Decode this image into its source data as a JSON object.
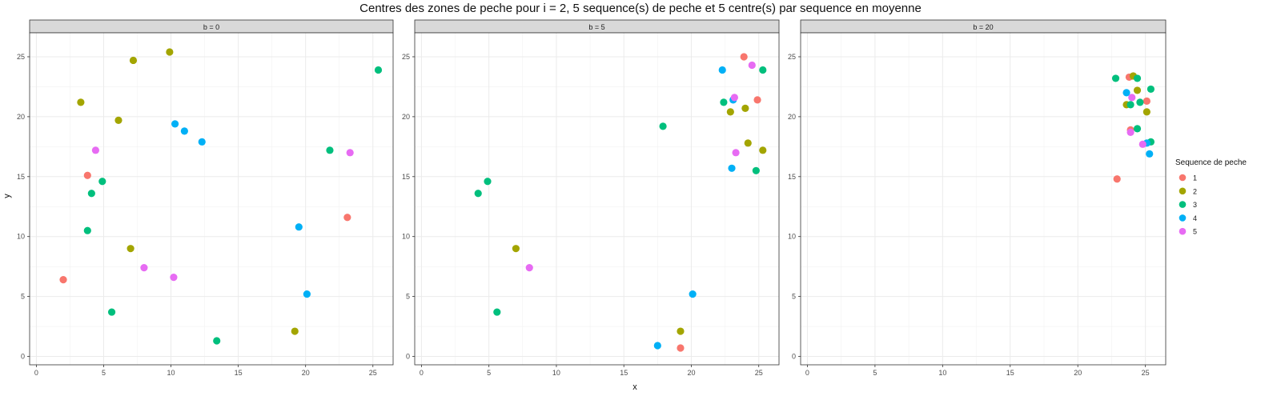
{
  "chart_data": {
    "type": "scatter",
    "title": "Centres des zones de peche pour i = 2, 5 sequence(s) de peche et 5 centre(s) par sequence en moyenne",
    "xlabel": "x",
    "ylabel": "y",
    "xlim": [
      -0.5,
      26.5
    ],
    "ylim": [
      -0.7,
      27.0
    ],
    "xticks": [
      0,
      5,
      10,
      15,
      20,
      25
    ],
    "yticks": [
      0,
      5,
      10,
      15,
      20,
      25
    ],
    "grid": true,
    "legend": {
      "title": "Sequence de peche",
      "position": "right",
      "entries": [
        {
          "label": "1",
          "color": "#F8766D"
        },
        {
          "label": "2",
          "color": "#A3A500"
        },
        {
          "label": "3",
          "color": "#00BF7D"
        },
        {
          "label": "4",
          "color": "#00B0F6"
        },
        {
          "label": "5",
          "color": "#E76BF3"
        }
      ]
    },
    "panels": [
      {
        "label": "b = 0",
        "series": [
          {
            "name": "1",
            "points": [
              [
                2.0,
                6.4
              ],
              [
                3.8,
                15.1
              ],
              [
                23.1,
                11.6
              ]
            ]
          },
          {
            "name": "2",
            "points": [
              [
                3.3,
                21.2
              ],
              [
                6.1,
                19.7
              ],
              [
                7.2,
                24.7
              ],
              [
                9.9,
                25.4
              ],
              [
                7.0,
                9.0
              ],
              [
                19.2,
                2.1
              ]
            ]
          },
          {
            "name": "3",
            "points": [
              [
                4.1,
                13.6
              ],
              [
                4.9,
                14.6
              ],
              [
                3.8,
                10.5
              ],
              [
                5.6,
                3.7
              ],
              [
                13.4,
                1.3
              ],
              [
                21.8,
                17.2
              ],
              [
                25.4,
                23.9
              ]
            ]
          },
          {
            "name": "4",
            "points": [
              [
                10.3,
                19.4
              ],
              [
                11.0,
                18.8
              ],
              [
                12.3,
                17.9
              ],
              [
                19.5,
                10.8
              ],
              [
                20.1,
                5.2
              ]
            ]
          },
          {
            "name": "5",
            "points": [
              [
                4.4,
                17.2
              ],
              [
                8.0,
                7.4
              ],
              [
                10.2,
                6.6
              ],
              [
                23.3,
                17.0
              ]
            ]
          }
        ]
      },
      {
        "label": "b = 5",
        "series": [
          {
            "name": "1",
            "points": [
              [
                23.9,
                25.0
              ],
              [
                24.9,
                21.4
              ],
              [
                19.2,
                0.7
              ]
            ]
          },
          {
            "name": "2",
            "points": [
              [
                24.0,
                20.7
              ],
              [
                22.9,
                20.4
              ],
              [
                24.2,
                17.8
              ],
              [
                25.3,
                17.2
              ],
              [
                7.0,
                9.0
              ],
              [
                19.2,
                2.1
              ]
            ]
          },
          {
            "name": "3",
            "points": [
              [
                25.3,
                23.9
              ],
              [
                22.4,
                21.2
              ],
              [
                17.9,
                19.2
              ],
              [
                24.8,
                15.5
              ],
              [
                4.2,
                13.6
              ],
              [
                4.9,
                14.6
              ],
              [
                5.6,
                3.7
              ]
            ]
          },
          {
            "name": "4",
            "points": [
              [
                22.3,
                23.9
              ],
              [
                23.1,
                21.4
              ],
              [
                23.0,
                15.7
              ],
              [
                20.1,
                5.2
              ],
              [
                17.5,
                0.9
              ]
            ]
          },
          {
            "name": "5",
            "points": [
              [
                24.5,
                24.3
              ],
              [
                23.2,
                21.6
              ],
              [
                23.3,
                17.0
              ],
              [
                8.0,
                7.4
              ]
            ]
          }
        ]
      },
      {
        "label": "b = 20",
        "series": [
          {
            "name": "1",
            "points": [
              [
                23.8,
                23.3
              ],
              [
                25.1,
                21.3
              ],
              [
                23.9,
                18.9
              ],
              [
                22.9,
                14.8
              ]
            ]
          },
          {
            "name": "2",
            "points": [
              [
                24.1,
                23.4
              ],
              [
                24.4,
                22.2
              ],
              [
                23.6,
                21.0
              ],
              [
                25.1,
                20.4
              ]
            ]
          },
          {
            "name": "3",
            "points": [
              [
                22.8,
                23.2
              ],
              [
                24.4,
                23.2
              ],
              [
                25.4,
                22.3
              ],
              [
                24.6,
                21.2
              ],
              [
                23.9,
                21.0
              ],
              [
                24.4,
                19.0
              ],
              [
                25.4,
                17.9
              ]
            ]
          },
          {
            "name": "4",
            "points": [
              [
                23.6,
                22.0
              ],
              [
                25.1,
                17.8
              ],
              [
                25.3,
                16.9
              ]
            ]
          },
          {
            "name": "5",
            "points": [
              [
                24.0,
                21.6
              ],
              [
                23.9,
                18.7
              ],
              [
                24.8,
                17.7
              ]
            ]
          }
        ]
      }
    ]
  }
}
